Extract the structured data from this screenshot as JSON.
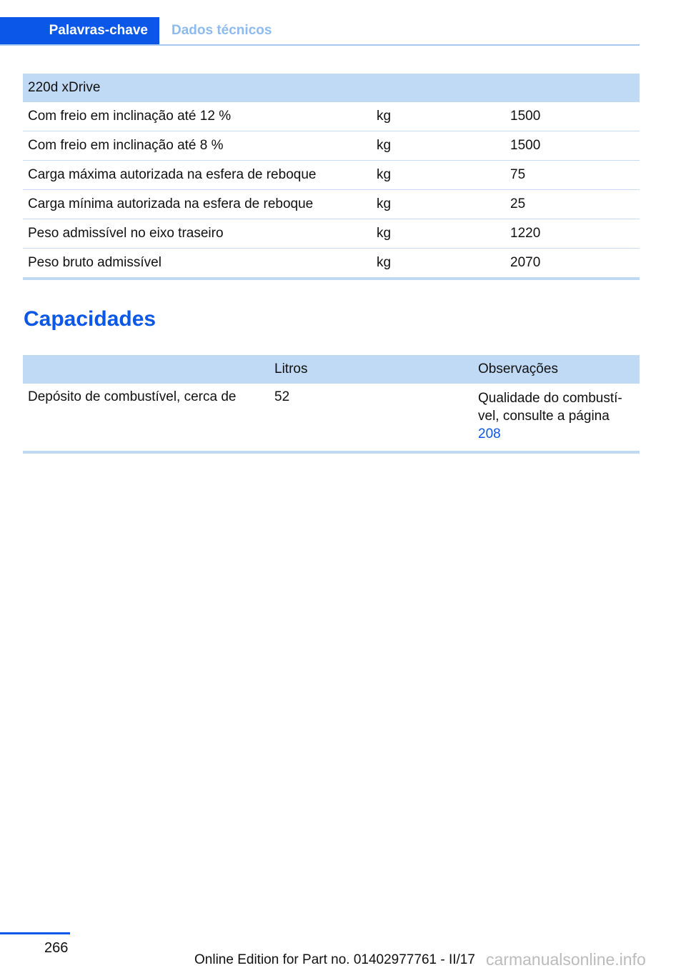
{
  "header": {
    "tab_active": "Palavras-chave",
    "tab_inactive": "Dados técnicos"
  },
  "table1": {
    "title": "220d xDrive",
    "rows": [
      [
        "Com freio em inclinação até 12 %",
        "kg",
        "1500"
      ],
      [
        "Com freio em inclinação até 8 %",
        "kg",
        "1500"
      ],
      [
        "Carga máxima autorizada na esfera de reboque",
        "kg",
        "75"
      ],
      [
        "Carga mínima autorizada na esfera de reboque",
        "kg",
        "25"
      ],
      [
        "Peso admissível no eixo traseiro",
        "kg",
        "1220"
      ],
      [
        "Peso bruto admissível",
        "kg",
        "2070"
      ]
    ]
  },
  "section_title": "Capacidades",
  "table2": {
    "headers": [
      "",
      "Litros",
      "Observações"
    ],
    "row": {
      "label": "Depósito de combustível, cerca de",
      "value": "52",
      "note": "Qualidade do combustí-vel, consulte a página",
      "link": "208"
    }
  },
  "footer": {
    "page": "266",
    "edition": "Online Edition for Part no. 01402977761 - II/17",
    "watermark": "carmanualsonline.info"
  }
}
